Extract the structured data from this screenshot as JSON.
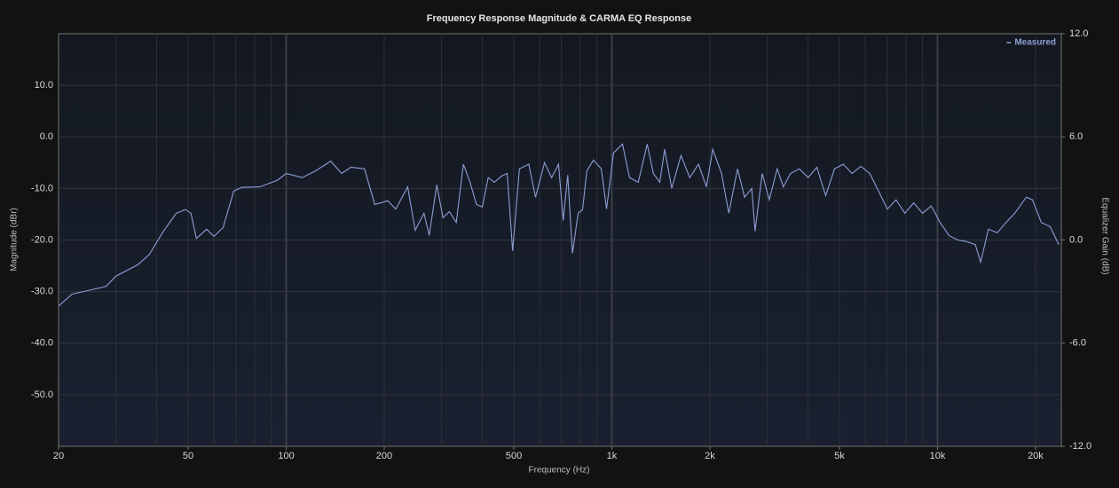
{
  "chart_data": {
    "type": "line",
    "title": "Frequency Response Magnitude & CARMA EQ Response",
    "x_label": "Frequency (Hz)",
    "y_label": "Magnitude (dBr)",
    "y2_label": "Equalizer Gain (dB)",
    "x_scale": "log",
    "xlim": [
      20,
      24000
    ],
    "xticks": [
      20,
      50,
      100,
      200,
      500,
      {
        "value": 1000,
        "label": "1k"
      },
      {
        "value": 2000,
        "label": "2k"
      },
      {
        "value": 5000,
        "label": "5k"
      },
      {
        "value": 10000,
        "label": "10k"
      },
      {
        "value": 20000,
        "label": "20k"
      }
    ],
    "ylim": [
      -60,
      20
    ],
    "yticks": [
      {
        "value": -50,
        "label": "-50.0"
      },
      {
        "value": -40,
        "label": "-40.0"
      },
      {
        "value": -30,
        "label": "-30.0"
      },
      {
        "value": -20,
        "label": "-20.0"
      },
      {
        "value": -10,
        "label": "-10.0"
      },
      {
        "value": 0,
        "label": "0.0"
      },
      {
        "value": 10,
        "label": "10.0"
      }
    ],
    "y2lim": [
      -12,
      12
    ],
    "y2ticks": [
      {
        "value": -12,
        "label": "-12.0"
      },
      {
        "value": -6,
        "label": "-6.0"
      },
      {
        "value": 0,
        "label": "0.0"
      },
      {
        "value": 6,
        "label": "6.0"
      },
      {
        "value": 12,
        "label": "12.0"
      }
    ],
    "grid": true,
    "legend": "top-right",
    "x": [
      20,
      22,
      25,
      28,
      30,
      35,
      38,
      42,
      46,
      49,
      51,
      53,
      57,
      60,
      64,
      69,
      73,
      83,
      88,
      94,
      100,
      112,
      123,
      137,
      148,
      158,
      174,
      187,
      205,
      217,
      236,
      249,
      265,
      275,
      290,
      303,
      317,
      333,
      350,
      367,
      384,
      400,
      417,
      436,
      459,
      477,
      496,
      520,
      556,
      583,
      621,
      653,
      686,
      709,
      732,
      757,
      788,
      813,
      838,
      878,
      928,
      963,
      1012,
      1078,
      1133,
      1206,
      1284,
      1341,
      1403,
      1453,
      1527,
      1630,
      1735,
      1845,
      1952,
      2041,
      2172,
      2286,
      2432,
      2556,
      2688,
      2754,
      2895,
      3043,
      3219,
      3364,
      3537,
      3765,
      4006,
      4262,
      4536,
      4827,
      5137,
      5467,
      5818,
      6192,
      6589,
      7012,
      7462,
      7942,
      8451,
      8994,
      9572,
      10187,
      10840,
      11536,
      12277,
      13065,
      13565,
      14335,
      15255,
      16234,
      17276,
      18733,
      19571,
      20829,
      22164,
      23587
    ],
    "series": [
      {
        "name": "Measured",
        "color": "#8d9ed4",
        "values": [
          -32.8,
          -30.5,
          -29.7,
          -29.0,
          -27.0,
          -24.8,
          -22.8,
          -18.3,
          -14.8,
          -14.1,
          -14.8,
          -19.7,
          -17.9,
          -19.3,
          -17.6,
          -10.5,
          -9.8,
          -9.7,
          -9.1,
          -8.4,
          -7.1,
          -7.9,
          -6.6,
          -4.7,
          -7.1,
          -5.9,
          -6.2,
          -13.1,
          -12.4,
          -14.0,
          -9.7,
          -18.1,
          -14.8,
          -19.1,
          -9.3,
          -15.7,
          -14.5,
          -16.6,
          -5.3,
          -8.8,
          -13.1,
          -13.6,
          -7.9,
          -8.8,
          -7.6,
          -7.1,
          -22.1,
          -6.2,
          -5.3,
          -11.7,
          -5.0,
          -7.9,
          -5.3,
          -16.2,
          -7.4,
          -22.6,
          -14.8,
          -14.1,
          -6.6,
          -4.5,
          -6.2,
          -14.0,
          -3.1,
          -1.4,
          -7.9,
          -8.8,
          -1.4,
          -7.1,
          -8.8,
          -2.4,
          -10.0,
          -3.6,
          -7.9,
          -5.3,
          -9.7,
          -2.4,
          -7.1,
          -14.8,
          -6.2,
          -11.7,
          -10.0,
          -18.3,
          -7.1,
          -12.2,
          -6.2,
          -9.7,
          -7.1,
          -6.2,
          -7.9,
          -5.9,
          -11.4,
          -6.2,
          -5.3,
          -7.1,
          -5.7,
          -7.1,
          -10.5,
          -14.0,
          -12.2,
          -14.8,
          -12.8,
          -14.8,
          -13.4,
          -16.6,
          -19.1,
          -20.0,
          -20.3,
          -20.9,
          -24.3,
          -17.9,
          -18.6,
          -16.6,
          -14.8,
          -11.7,
          -12.2,
          -16.6,
          -17.4,
          -20.9
        ]
      }
    ]
  }
}
